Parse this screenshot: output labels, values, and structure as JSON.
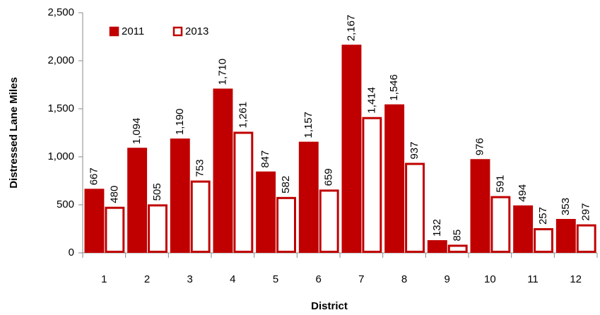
{
  "chart_data": {
    "type": "bar",
    "categories": [
      "1",
      "2",
      "3",
      "4",
      "5",
      "6",
      "7",
      "8",
      "9",
      "10",
      "11",
      "12"
    ],
    "series": [
      {
        "name": "2011",
        "color": "#c00000",
        "fill": "#c00000",
        "values": [
          667,
          1094,
          1190,
          1710,
          847,
          1157,
          2167,
          1546,
          132,
          976,
          494,
          353
        ],
        "value_labels": [
          "667",
          "1,094",
          "1,190",
          "1,710",
          "847",
          "1,157",
          "2,167",
          "1,546",
          "132",
          "976",
          "494",
          "353"
        ]
      },
      {
        "name": "2013",
        "color": "#c00000",
        "fill": "#ffffff",
        "values": [
          480,
          505,
          753,
          1261,
          582,
          659,
          1414,
          937,
          85,
          591,
          257,
          297
        ],
        "value_labels": [
          "480",
          "505",
          "753",
          "1,261",
          "582",
          "659",
          "1,414",
          "937",
          "85",
          "591",
          "257",
          "297"
        ]
      }
    ],
    "x_label": "District",
    "y_label": "Distressed Lane Miles",
    "ylim": [
      0,
      2500
    ],
    "yticks": [
      0,
      500,
      {
        "value": 1000,
        "label": "1,000"
      },
      {
        "value": 1500,
        "label": "1,500"
      },
      {
        "value": 2000,
        "label": "2,000"
      },
      {
        "value": 2500,
        "label": "2,500"
      }
    ],
    "legend": "top-left"
  }
}
